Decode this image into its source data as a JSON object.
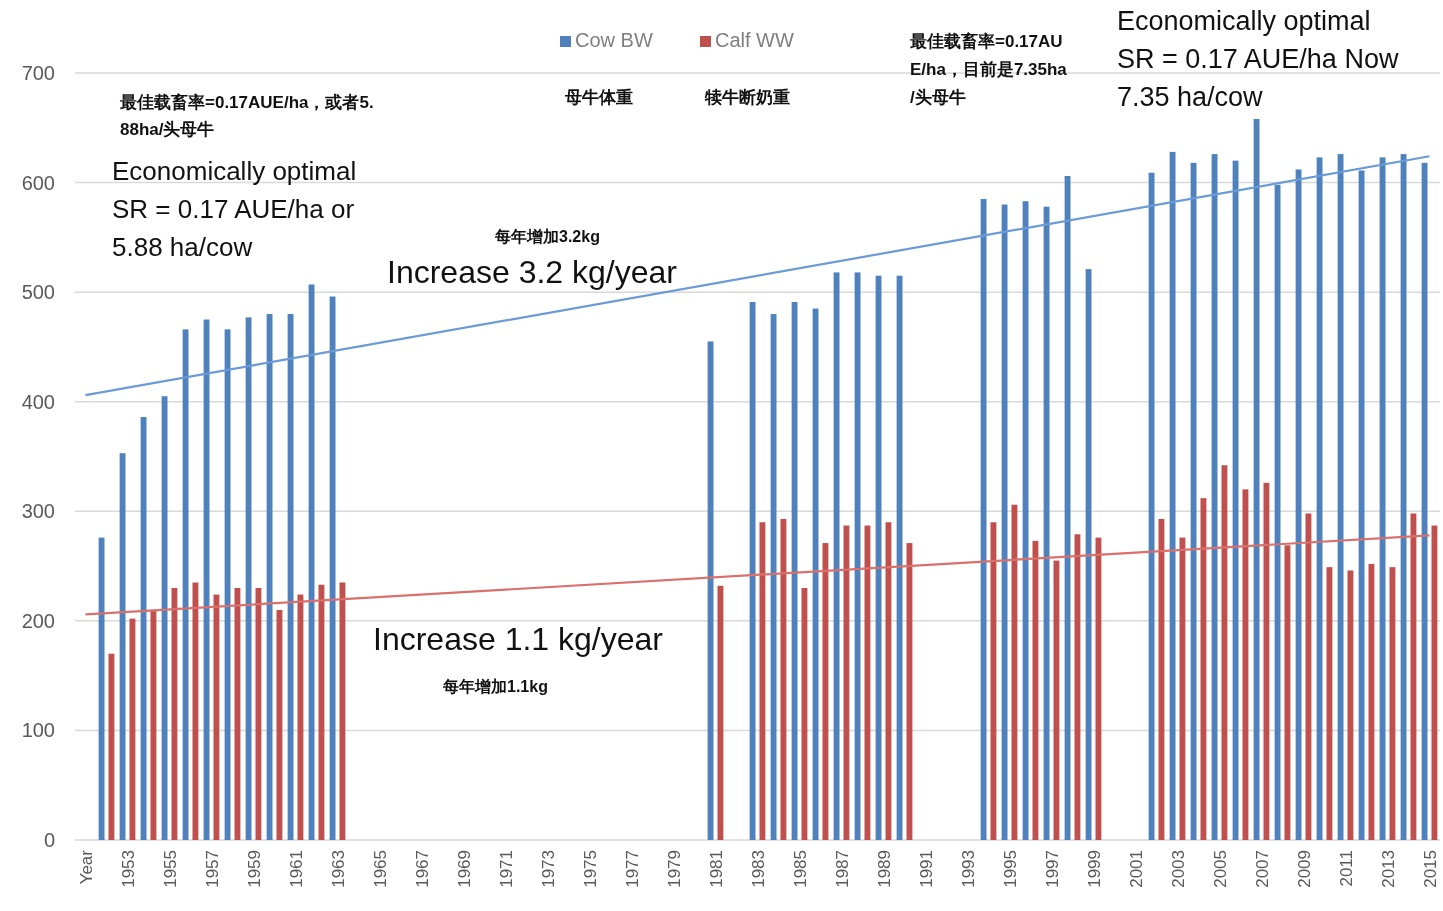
{
  "chart_data": {
    "type": "bar",
    "categories": [
      "Year",
      null,
      "1953",
      null,
      "1955",
      null,
      "1957",
      null,
      "1959",
      null,
      "1961",
      null,
      "1963",
      null,
      "1965",
      null,
      "1967",
      null,
      "1969",
      null,
      "1971",
      null,
      "1973",
      null,
      "1975",
      null,
      "1977",
      null,
      "1979",
      null,
      "1981",
      null,
      "1983",
      null,
      "1985",
      null,
      "1987",
      null,
      "1989",
      null,
      "1991",
      null,
      "1993",
      null,
      "1995",
      null,
      "1997",
      null,
      "1999",
      null,
      "2001",
      null,
      "2003",
      null,
      "2005",
      null,
      "2007",
      null,
      "2009",
      null,
      "2011",
      null,
      "2013",
      null,
      "2015"
    ],
    "series": [
      {
        "name": "Cow BW",
        "color": "#4f81bd",
        "values": [
          null,
          276,
          353,
          386,
          405,
          466,
          475,
          466,
          477,
          480,
          480,
          507,
          496,
          null,
          null,
          null,
          null,
          null,
          null,
          null,
          null,
          null,
          null,
          null,
          null,
          null,
          null,
          null,
          null,
          null,
          455,
          null,
          491,
          480,
          491,
          485,
          518,
          518,
          515,
          515,
          null,
          null,
          null,
          585,
          580,
          583,
          578,
          606,
          521,
          null,
          null,
          609,
          628,
          618,
          626,
          620,
          658,
          598,
          612,
          623,
          626,
          611,
          623,
          626,
          618
        ]
      },
      {
        "name": "Calf WW",
        "color": "#c0504d",
        "values": [
          null,
          170,
          202,
          210,
          230,
          235,
          224,
          230,
          230,
          210,
          224,
          233,
          235,
          null,
          null,
          null,
          null,
          null,
          null,
          null,
          null,
          null,
          null,
          null,
          null,
          null,
          null,
          null,
          null,
          null,
          232,
          null,
          290,
          293,
          230,
          271,
          287,
          287,
          290,
          271,
          null,
          null,
          null,
          290,
          306,
          273,
          255,
          279,
          276,
          null,
          null,
          293,
          276,
          312,
          342,
          320,
          326,
          269,
          298,
          249,
          246,
          252,
          249,
          298,
          287
        ]
      },
      {
        "type": "line",
        "color": "#6a9bd8",
        "values": [
          406,
          null,
          null,
          null,
          null,
          null,
          null,
          null,
          null,
          null,
          null,
          null,
          null,
          null,
          null,
          null,
          null,
          null,
          null,
          null,
          null,
          null,
          null,
          null,
          null,
          null,
          null,
          null,
          null,
          null,
          null,
          null,
          null,
          null,
          null,
          null,
          null,
          null,
          null,
          null,
          null,
          null,
          null,
          null,
          null,
          null,
          null,
          null,
          null,
          null,
          null,
          null,
          null,
          null,
          null,
          null,
          null,
          null,
          null,
          null,
          null,
          null,
          null,
          null,
          624
        ]
      },
      {
        "type": "line",
        "color": "#d9706c",
        "values": [
          206,
          null,
          null,
          null,
          null,
          null,
          null,
          null,
          null,
          null,
          null,
          null,
          null,
          null,
          null,
          null,
          null,
          null,
          null,
          null,
          null,
          null,
          null,
          null,
          null,
          null,
          null,
          null,
          null,
          null,
          null,
          null,
          null,
          null,
          null,
          null,
          null,
          null,
          null,
          null,
          null,
          null,
          null,
          null,
          null,
          null,
          null,
          null,
          null,
          null,
          null,
          null,
          null,
          null,
          null,
          null,
          null,
          null,
          null,
          null,
          null,
          null,
          null,
          null,
          278
        ]
      }
    ],
    "ylim": [
      0,
      700
    ],
    "yticks": [
      0,
      100,
      200,
      300,
      400,
      500,
      600,
      700
    ],
    "grid": "y",
    "legend": "top",
    "annotations": [
      "最佳载畜率=0.17AUE/ha，或者5.88ha/头母牛",
      "Economically optimal SR = 0.17 AUE/ha or 5.88 ha/cow",
      "母牛体重",
      "犊牛断奶重",
      "每年增加3.2kg",
      "Increase 3.2 kg/year",
      "最佳载畜率=0.17AUE/ha，目前是7.35ha/头母牛",
      "Economically optimal SR = 0.17 AUE/ha Now 7.35 ha/cow",
      "Increase 1.1 kg/year",
      "每年增加1.1kg"
    ]
  }
}
